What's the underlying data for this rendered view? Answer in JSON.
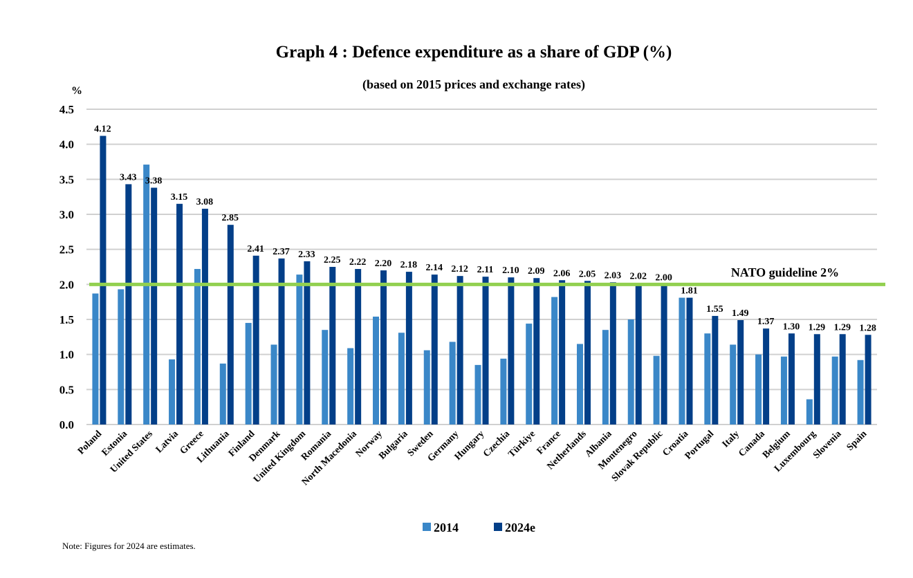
{
  "chart_data": {
    "type": "bar",
    "title": "Graph 4 : Defence expenditure as a share of GDP (%)",
    "subtitle": "(based on 2015 prices and exchange rates)",
    "ylabel": "%",
    "xlabel": "",
    "ylim": [
      0,
      4.5
    ],
    "yticks": [
      "0.0",
      "0.5",
      "1.0",
      "1.5",
      "2.0",
      "2.5",
      "3.0",
      "3.5",
      "4.0",
      "4.5"
    ],
    "grid": true,
    "legend_position": "bottom",
    "categories": [
      "Poland",
      "Estonia",
      "United States",
      "Latvia",
      "Greece",
      "Lithuania",
      "Finland",
      "Denmark",
      "United Kingdom",
      "Romania",
      "North Macedonia",
      "Norway",
      "Bulgaria",
      "Sweden",
      "Germany",
      "Hungary",
      "Czechia",
      "Türkiye",
      "France",
      "Netherlands",
      "Albania",
      "Montenegro",
      "Slovak Republic",
      "Croatia",
      "Portugal",
      "Italy",
      "Canada",
      "Belgium",
      "Luxembourg",
      "Slovenia",
      "Spain"
    ],
    "series": [
      {
        "name": "2014",
        "color": "#3a87c8",
        "values": [
          1.87,
          1.93,
          3.71,
          0.93,
          2.22,
          0.87,
          1.45,
          1.14,
          2.14,
          1.35,
          1.09,
          1.54,
          1.31,
          1.06,
          1.18,
          0.85,
          0.94,
          1.44,
          1.82,
          1.15,
          1.35,
          1.5,
          0.98,
          1.81,
          1.3,
          1.14,
          1.0,
          0.97,
          0.36,
          0.97,
          0.92
        ]
      },
      {
        "name": "2024e",
        "color": "#033f88",
        "values": [
          4.12,
          3.43,
          3.38,
          3.15,
          3.08,
          2.85,
          2.41,
          2.37,
          2.33,
          2.25,
          2.22,
          2.2,
          2.18,
          2.14,
          2.12,
          2.11,
          2.1,
          2.09,
          2.06,
          2.05,
          2.03,
          2.02,
          2.0,
          1.81,
          1.55,
          1.49,
          1.37,
          1.3,
          1.29,
          1.29,
          1.28
        ],
        "labels": [
          "4.12",
          "3.43",
          "3.38",
          "3.15",
          "3.08",
          "2.85",
          "2.41",
          "2.37",
          "2.33",
          "2.25",
          "2.22",
          "2.20",
          "2.18",
          "2.14",
          "2.12",
          "2.11",
          "2.10",
          "2.09",
          "2.06",
          "2.05",
          "2.03",
          "2.02",
          "2.00",
          "1.81",
          "1.55",
          "1.49",
          "1.37",
          "1.30",
          "1.29",
          "1.29",
          "1.28"
        ]
      }
    ],
    "reference_line": {
      "value": 2.0,
      "label": "NATO guideline 2%",
      "color": "#92d050"
    }
  },
  "note": "Note: Figures for 2024 are estimates."
}
